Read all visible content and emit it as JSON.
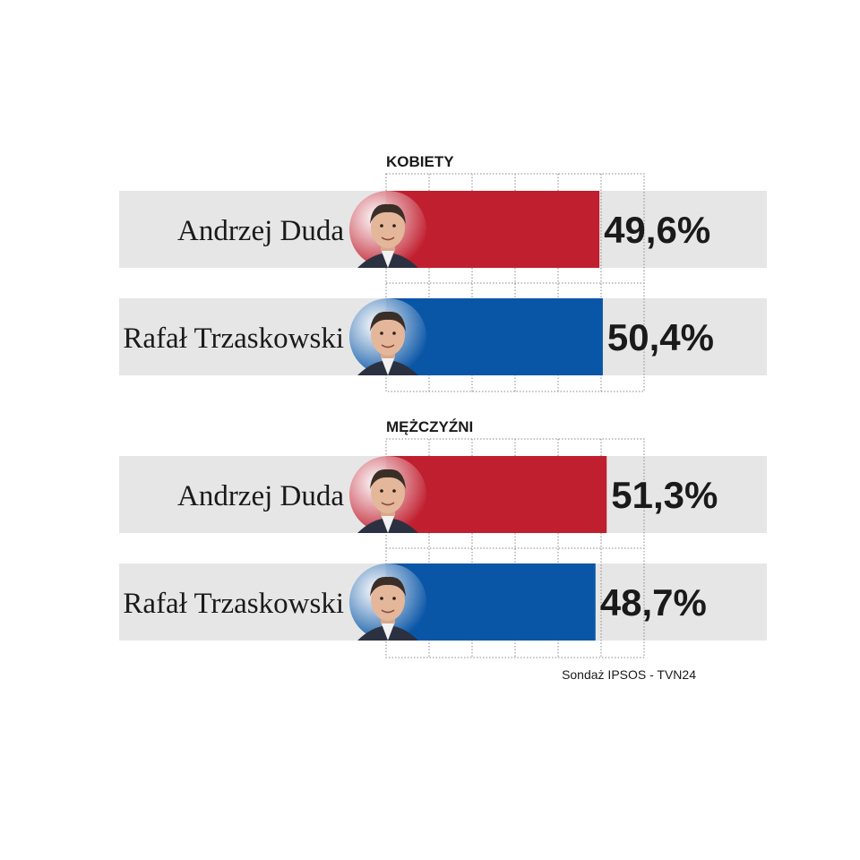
{
  "chart_data": {
    "type": "bar",
    "orientation": "horizontal",
    "xlim": [
      0,
      60
    ],
    "grid": true,
    "colors": {
      "Andrzej Duda": "#c01f2f",
      "Rafał Trzaskowski": "#0a56a6"
    },
    "groups": [
      {
        "title": "KOBIETY",
        "bars": [
          {
            "name": "Andrzej Duda",
            "value": 49.6,
            "label": "49,6%"
          },
          {
            "name": "Rafał Trzaskowski",
            "value": 50.4,
            "label": "50,4%"
          }
        ]
      },
      {
        "title": "MĘŻCZYŹNI",
        "bars": [
          {
            "name": "Andrzej Duda",
            "value": 51.3,
            "label": "51,3%"
          },
          {
            "name": "Rafał Trzaskowski",
            "value": 48.7,
            "label": "48,7%"
          }
        ]
      }
    ],
    "source": "Sondaż IPSOS - TVN24"
  }
}
